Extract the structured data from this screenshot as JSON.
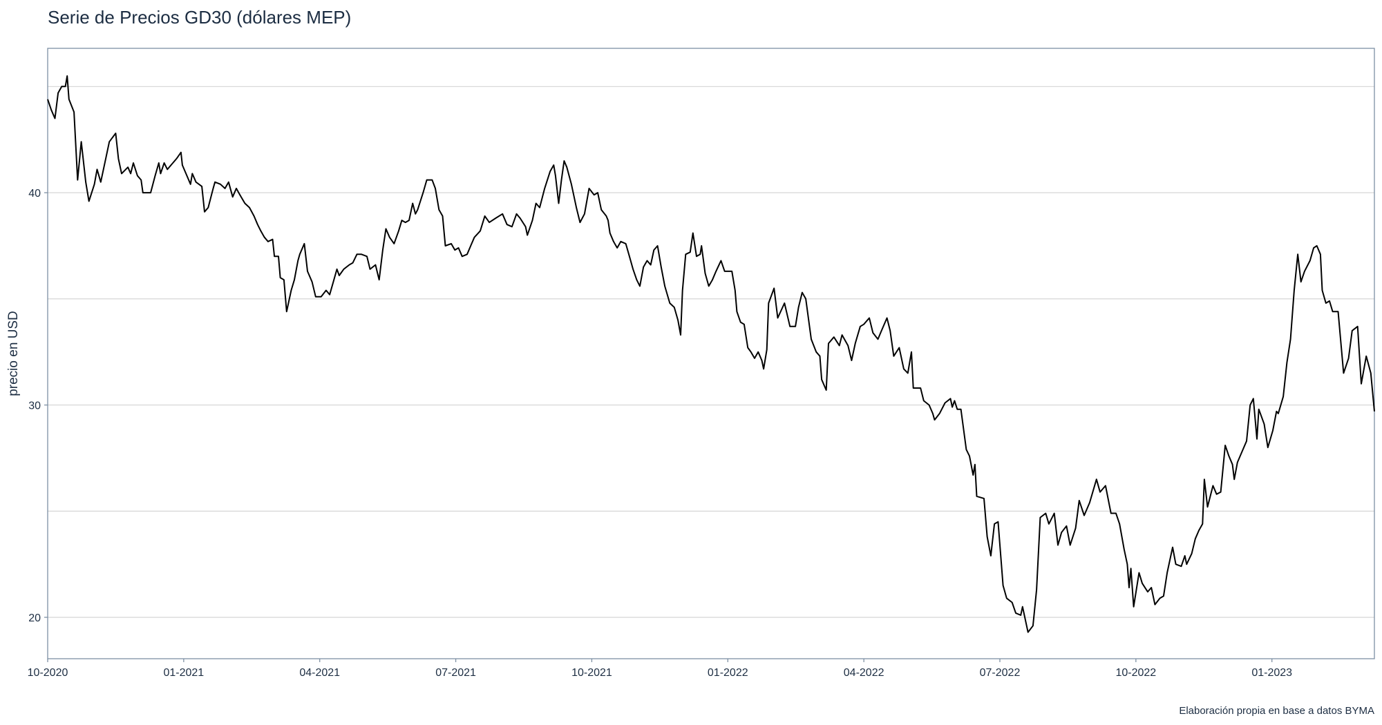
{
  "chart_data": {
    "type": "line",
    "title": "Serie de Precios GD30 (dólares MEP)",
    "xlabel": "",
    "ylabel": "precio en USD",
    "caption": "Elaboración propia en base a datos BYMA",
    "x_units": "months since 10-2020",
    "xlim": [
      0,
      29.26
    ],
    "ylim": [
      18.05,
      46.8
    ],
    "grid": true,
    "x_ticks": [
      0,
      3,
      6,
      9,
      12,
      15,
      18,
      21,
      24,
      27
    ],
    "x_tick_labels": [
      "10-2020",
      "01-2021",
      "04-2021",
      "07-2021",
      "10-2021",
      "01-2022",
      "04-2022",
      "07-2022",
      "10-2022",
      "01-2023"
    ],
    "y_ticks": [
      20,
      30,
      40
    ],
    "y_tick_labels": [
      "20",
      "30",
      "40"
    ],
    "y_minor_gridlines": [
      25,
      35,
      45
    ],
    "series": [
      {
        "name": "GD30",
        "color": "#000000",
        "x": [
          0,
          0.08,
          0.16,
          0.23,
          0.31,
          0.39,
          0.43,
          0.47,
          0.58,
          0.66,
          0.74,
          0.84,
          0.91,
          1.03,
          1.09,
          1.17,
          1.28,
          1.36,
          1.5,
          1.56,
          1.63,
          1.77,
          1.83,
          1.89,
          1.98,
          2.06,
          2.1,
          2.27,
          2.37,
          2.45,
          2.49,
          2.57,
          2.64,
          2.72,
          2.84,
          2.94,
          2.97,
          3.09,
          3.15,
          3.19,
          3.27,
          3.4,
          3.46,
          3.54,
          3.65,
          3.69,
          3.81,
          3.91,
          3.99,
          4.08,
          4.16,
          4.24,
          4.35,
          4.45,
          4.55,
          4.63,
          4.7,
          4.78,
          4.86,
          4.96,
          5,
          5.09,
          5.13,
          5.21,
          5.27,
          5.37,
          5.44,
          5.52,
          5.56,
          5.66,
          5.73,
          5.83,
          5.91,
          6.03,
          6.14,
          6.22,
          6.3,
          6.38,
          6.43,
          6.53,
          6.65,
          6.73,
          6.82,
          6.92,
          7.04,
          7.11,
          7.23,
          7.31,
          7.39,
          7.46,
          7.54,
          7.64,
          7.74,
          7.81,
          7.89,
          7.97,
          8.05,
          8.11,
          8.16,
          8.28,
          8.36,
          8.48,
          8.55,
          8.63,
          8.71,
          8.77,
          8.9,
          8.98,
          9.06,
          9.14,
          9.25,
          9.33,
          9.41,
          9.54,
          9.64,
          9.74,
          9.88,
          10.03,
          10.13,
          10.24,
          10.34,
          10.42,
          10.54,
          10.58,
          10.69,
          10.77,
          10.85,
          10.96,
          11.08,
          11.16,
          11.2,
          11.27,
          11.33,
          11.39,
          11.45,
          11.55,
          11.66,
          11.74,
          11.84,
          11.94,
          12.05,
          12.13,
          12.21,
          12.32,
          12.36,
          12.4,
          12.48,
          12.56,
          12.64,
          12.75,
          12.83,
          12.91,
          12.99,
          13.06,
          13.14,
          13.22,
          13.3,
          13.37,
          13.45,
          13.53,
          13.61,
          13.72,
          13.82,
          13.9,
          13.96,
          14,
          14.07,
          14.17,
          14.23,
          14.31,
          14.39,
          14.42,
          14.5,
          14.58,
          14.66,
          14.74,
          14.85,
          14.93,
          15.09,
          15.16,
          15.2,
          15.28,
          15.36,
          15.44,
          15.51,
          15.59,
          15.67,
          15.75,
          15.79,
          15.86,
          15.9,
          16.02,
          16.1,
          16.25,
          16.37,
          16.49,
          16.56,
          16.64,
          16.72,
          16.84,
          16.95,
          17.03,
          17.07,
          17.17,
          17.22,
          17.34,
          17.46,
          17.52,
          17.65,
          17.73,
          17.81,
          17.92,
          18,
          18.12,
          18.2,
          18.31,
          18.39,
          18.51,
          18.58,
          18.66,
          18.78,
          18.88,
          18.97,
          19.05,
          19.09,
          19.25,
          19.32,
          19.44,
          19.52,
          19.56,
          19.67,
          19.79,
          19.91,
          19.95,
          20,
          20.06,
          20.14,
          20.26,
          20.33,
          20.41,
          20.45,
          20.49,
          20.65,
          20.72,
          20.8,
          20.88,
          20.96,
          21.07,
          21.15,
          21.27,
          21.35,
          21.46,
          21.5,
          21.62,
          21.73,
          21.81,
          21.89,
          22.01,
          22.08,
          22.2,
          22.28,
          22.36,
          22.47,
          22.55,
          22.67,
          22.75,
          22.86,
          22.98,
          23.13,
          23.21,
          23.33,
          23.45,
          23.56,
          23.64,
          23.74,
          23.81,
          23.85,
          23.89,
          23.95,
          24.07,
          24.14,
          24.26,
          24.34,
          24.42,
          24.53,
          24.61,
          24.69,
          24.81,
          24.88,
          25,
          25.08,
          25.12,
          25.23,
          25.31,
          25.39,
          25.47,
          25.51,
          25.58,
          25.7,
          25.78,
          25.87,
          25.97,
          26.05,
          26.13,
          26.17,
          26.24,
          26.36,
          26.44,
          26.52,
          26.59,
          26.67,
          26.71,
          26.83,
          26.91,
          27.02,
          27.1,
          27.14,
          27.25,
          27.33,
          27.41,
          27.49,
          27.57,
          27.64,
          27.72,
          27.84,
          27.92,
          27.99,
          28.07,
          28.11,
          28.19,
          28.27,
          28.34,
          28.46,
          28.58,
          28.69,
          28.77,
          28.89,
          28.97,
          29.08,
          29.18,
          29.26
        ],
        "y": [
          44.4,
          43.9,
          43.5,
          44.7,
          45,
          45,
          45.5,
          44.4,
          43.8,
          40.6,
          42.4,
          40.5,
          39.6,
          40.4,
          41.1,
          40.5,
          41.6,
          42.4,
          42.8,
          41.6,
          40.9,
          41.2,
          40.9,
          41.4,
          40.8,
          40.6,
          40,
          40,
          40.8,
          41.4,
          40.9,
          41.4,
          41.1,
          41.3,
          41.6,
          41.9,
          41.3,
          40.7,
          40.4,
          40.9,
          40.5,
          40.3,
          39.1,
          39.3,
          40.2,
          40.5,
          40.4,
          40.2,
          40.5,
          39.8,
          40.2,
          39.9,
          39.5,
          39.3,
          38.9,
          38.5,
          38.2,
          37.9,
          37.7,
          37.8,
          37,
          37,
          36,
          35.9,
          34.4,
          35.4,
          35.9,
          36.8,
          37.1,
          37.6,
          36.3,
          35.8,
          35.1,
          35.1,
          35.4,
          35.2,
          35.8,
          36.4,
          36.1,
          36.4,
          36.6,
          36.7,
          37.1,
          37.1,
          37,
          36.4,
          36.6,
          35.9,
          37.3,
          38.3,
          37.9,
          37.6,
          38.2,
          38.7,
          38.6,
          38.7,
          39.5,
          39,
          39.2,
          40,
          40.6,
          40.6,
          40.2,
          39.2,
          38.9,
          37.5,
          37.6,
          37.3,
          37.4,
          37,
          37.1,
          37.5,
          37.9,
          38.2,
          38.9,
          38.6,
          38.8,
          39,
          38.5,
          38.4,
          39,
          38.8,
          38.4,
          38,
          38.7,
          39.5,
          39.3,
          40.2,
          41,
          41.3,
          40.8,
          39.5,
          40.6,
          41.5,
          41.2,
          40.4,
          39.3,
          38.6,
          39,
          40.2,
          39.9,
          40,
          39.2,
          38.9,
          38.7,
          38.1,
          37.7,
          37.4,
          37.7,
          37.6,
          37,
          36.4,
          35.9,
          35.6,
          36.5,
          36.8,
          36.6,
          37.3,
          37.5,
          36.5,
          35.6,
          34.8,
          34.6,
          34,
          33.3,
          35.4,
          37.1,
          37.2,
          38.1,
          37,
          37.1,
          37.5,
          36.2,
          35.6,
          35.9,
          36.3,
          36.8,
          36.3,
          36.3,
          35.4,
          34.4,
          33.9,
          33.8,
          32.7,
          32.5,
          32.2,
          32.5,
          32.1,
          31.7,
          32.6,
          34.8,
          35.5,
          34.1,
          34.8,
          33.7,
          33.7,
          34.6,
          35.3,
          35,
          33.1,
          32.5,
          32.3,
          31.2,
          30.7,
          32.9,
          33.2,
          32.8,
          33.3,
          32.8,
          32.1,
          32.9,
          33.7,
          33.8,
          34.1,
          33.4,
          33.1,
          33.5,
          34.1,
          33.5,
          32.3,
          32.7,
          31.7,
          31.5,
          32.5,
          30.8,
          30.8,
          30.2,
          30,
          29.6,
          29.3,
          29.6,
          30.1,
          30.3,
          29.9,
          30.2,
          29.8,
          29.8,
          27.9,
          27.6,
          26.7,
          27.2,
          25.7,
          25.6,
          23.8,
          22.9,
          24.4,
          24.5,
          21.5,
          20.9,
          20.7,
          20.2,
          20.1,
          20.5,
          19.3,
          19.6,
          21.3,
          24.7,
          24.9,
          24.4,
          24.9,
          23.4,
          24,
          24.3,
          23.4,
          24.2,
          25.5,
          24.8,
          25.4,
          26.5,
          25.9,
          26.2,
          24.9,
          24.9,
          24.4,
          23.2,
          22.5,
          21.4,
          22.3,
          20.5,
          22.1,
          21.6,
          21.2,
          21.4,
          20.6,
          20.9,
          21,
          22.1,
          23.3,
          22.5,
          22.4,
          22.9,
          22.5,
          23,
          23.7,
          24.1,
          24.4,
          26.5,
          25.2,
          26.2,
          25.8,
          25.9,
          28.1,
          27.6,
          27.2,
          26.5,
          27.3,
          27.9,
          28.3,
          30,
          30.3,
          28.4,
          29.8,
          29.1,
          28,
          28.8,
          29.7,
          29.6,
          30.4,
          32,
          33.1,
          35.4,
          37.1,
          35.8,
          36.3,
          36.8,
          37.4,
          37.5,
          37.1,
          35.4,
          34.8,
          34.9,
          34.4,
          34.4,
          31.5,
          32.2,
          33.5,
          33.7,
          31,
          32.3,
          31.5,
          29.7
        ]
      }
    ]
  }
}
